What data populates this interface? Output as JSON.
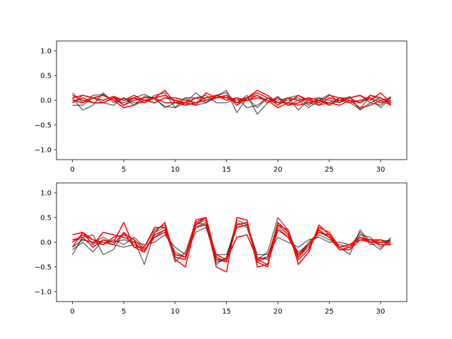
{
  "chart_data": [
    {
      "type": "line",
      "title": "",
      "xlabel": "",
      "ylabel": "",
      "xlim": [
        -1.55,
        32.55
      ],
      "ylim": [
        -1.2,
        1.2
      ],
      "xticks": [
        0,
        5,
        10,
        15,
        20,
        25,
        30
      ],
      "yticks": [
        -1.0,
        -0.5,
        0.0,
        0.5,
        1.0
      ],
      "ytick_labels": [
        "−1.0",
        "−0.5",
        "0.0",
        "0.5",
        "1.0"
      ],
      "grid": false,
      "legend": "none",
      "x": [
        0,
        1,
        2,
        3,
        4,
        5,
        6,
        7,
        8,
        9,
        10,
        11,
        12,
        13,
        14,
        15,
        16,
        17,
        18,
        19,
        20,
        21,
        22,
        23,
        24,
        25,
        26,
        27,
        28,
        29,
        30,
        31
      ],
      "series": [
        {
          "color": "#000000",
          "alpha": 0.55,
          "values": [
            0.15,
            -0.05,
            0.1,
            0.12,
            0.0,
            -0.05,
            0.05,
            0.12,
            0.02,
            -0.12,
            -0.15,
            -0.05,
            0.15,
            0.0,
            0.08,
            0.2,
            -0.25,
            0.05,
            -0.15,
            0.05,
            0.0,
            0.05,
            -0.2,
            0.02,
            0.05,
            -0.1,
            0.0,
            -0.05,
            -0.18,
            0.1,
            0.0,
            0.05
          ]
        },
        {
          "color": "#000000",
          "alpha": 0.55,
          "values": [
            0.05,
            -0.2,
            -0.1,
            0.15,
            -0.05,
            0.05,
            -0.1,
            0.08,
            0.05,
            -0.15,
            -0.05,
            0.05,
            -0.1,
            -0.05,
            0.1,
            0.15,
            -0.05,
            0.1,
            -0.28,
            -0.05,
            0.08,
            -0.1,
            0.0,
            -0.15,
            0.0,
            0.12,
            -0.05,
            0.08,
            -0.2,
            -0.05,
            -0.1,
            0.08
          ]
        },
        {
          "color": "#000000",
          "alpha": 0.55,
          "values": [
            -0.1,
            -0.1,
            0.05,
            -0.05,
            -0.1,
            0.05,
            -0.05,
            -0.05,
            0.1,
            0.15,
            -0.15,
            0.05,
            0.05,
            0.1,
            -0.05,
            -0.05,
            0.05,
            -0.15,
            -0.1,
            0.05,
            -0.05,
            0.05,
            0.1,
            -0.05,
            -0.1,
            -0.05,
            0.05,
            0.05,
            -0.05,
            0.05,
            -0.15,
            0.05
          ]
        },
        {
          "color": "#000000",
          "alpha": 0.55,
          "values": [
            -0.05,
            0.1,
            0.05,
            0.0,
            0.08,
            -0.1,
            0.05,
            0.0,
            -0.05,
            0.05,
            0.0,
            -0.1,
            0.05,
            -0.05,
            0.05,
            0.05,
            0.0,
            0.05,
            0.1,
            0.0,
            -0.05,
            0.0,
            0.05,
            -0.1,
            0.05,
            0.0,
            -0.05,
            0.05,
            0.1,
            -0.05,
            0.05,
            -0.05
          ]
        },
        {
          "color": "#ff0000",
          "alpha": 1.0,
          "values": [
            0.05,
            0.1,
            0.05,
            0.0,
            0.08,
            0.0,
            0.05,
            -0.05,
            0.05,
            0.2,
            -0.05,
            -0.05,
            -0.1,
            0.15,
            0.05,
            0.1,
            -0.1,
            0.05,
            0.2,
            0.1,
            -0.05,
            -0.05,
            0.1,
            0.0,
            -0.05,
            0.1,
            0.05,
            0.0,
            -0.05,
            0.1,
            0.05,
            -0.08
          ]
        },
        {
          "color": "#ff0000",
          "alpha": 1.0,
          "values": [
            -0.05,
            0.05,
            -0.05,
            -0.05,
            0.05,
            -0.1,
            0.0,
            0.05,
            0.05,
            0.1,
            0.0,
            -0.05,
            0.05,
            0.05,
            0.1,
            0.05,
            -0.05,
            0.0,
            0.1,
            -0.05,
            0.05,
            -0.1,
            -0.05,
            0.05,
            -0.1,
            0.05,
            0.0,
            0.05,
            0.1,
            0.0,
            0.15,
            -0.05
          ]
        },
        {
          "color": "#ff0000",
          "alpha": 1.0,
          "values": [
            0.0,
            -0.05,
            0.05,
            0.1,
            0.0,
            -0.15,
            -0.1,
            0.0,
            -0.05,
            0.05,
            0.05,
            0.0,
            -0.05,
            0.05,
            0.1,
            0.0,
            0.05,
            0.0,
            0.05,
            0.0,
            -0.15,
            -0.05,
            -0.1,
            -0.05,
            0.0,
            -0.05,
            -0.1,
            0.0,
            -0.15,
            -0.1,
            0.0,
            -0.1
          ]
        },
        {
          "color": "#ff0000",
          "alpha": 1.0,
          "values": [
            0.1,
            0.0,
            -0.05,
            -0.05,
            0.05,
            0.0,
            0.1,
            0.0,
            0.05,
            -0.05,
            -0.05,
            -0.1,
            -0.05,
            0.0,
            0.05,
            0.1,
            -0.05,
            0.05,
            0.15,
            0.05,
            -0.1,
            0.05,
            0.0,
            0.05,
            0.0,
            -0.1,
            0.05,
            -0.05,
            0.0,
            0.05,
            -0.05,
            0.0
          ]
        }
      ]
    },
    {
      "type": "line",
      "title": "",
      "xlabel": "",
      "ylabel": "",
      "xlim": [
        -1.55,
        32.55
      ],
      "ylim": [
        -1.2,
        1.2
      ],
      "xticks": [
        0,
        5,
        10,
        15,
        20,
        25,
        30
      ],
      "yticks": [
        -1.0,
        -0.5,
        0.0,
        0.5,
        1.0
      ],
      "ytick_labels": [
        "−1.0",
        "−0.5",
        "0.0",
        "0.5",
        "1.0"
      ],
      "grid": false,
      "legend": "none",
      "x": [
        0,
        1,
        2,
        3,
        4,
        5,
        6,
        7,
        8,
        9,
        10,
        11,
        12,
        13,
        14,
        15,
        16,
        17,
        18,
        19,
        20,
        21,
        22,
        23,
        24,
        25,
        26,
        27,
        28,
        29,
        30,
        31
      ],
      "series": [
        {
          "color": "#000000",
          "alpha": 0.55,
          "values": [
            -0.25,
            0.1,
            0.15,
            -0.25,
            -0.15,
            0.2,
            0.05,
            -0.45,
            0.2,
            0.3,
            -0.4,
            -0.2,
            0.4,
            0.35,
            -0.45,
            -0.3,
            0.4,
            0.3,
            -0.35,
            -0.2,
            0.5,
            0.25,
            -0.3,
            -0.1,
            0.25,
            0.1,
            -0.1,
            -0.25,
            0.25,
            0.0,
            -0.15,
            0.1
          ]
        },
        {
          "color": "#000000",
          "alpha": 0.55,
          "values": [
            -0.15,
            0.0,
            -0.2,
            0.05,
            -0.05,
            -0.1,
            -0.05,
            -0.15,
            0.1,
            0.25,
            -0.2,
            -0.3,
            0.3,
            0.4,
            -0.35,
            -0.4,
            0.35,
            0.4,
            -0.4,
            -0.3,
            0.3,
            0.1,
            -0.2,
            -0.05,
            0.15,
            0.05,
            -0.05,
            -0.1,
            0.2,
            -0.05,
            0.0,
            0.05
          ]
        },
        {
          "color": "#000000",
          "alpha": 0.55,
          "values": [
            0.05,
            0.05,
            0.0,
            0.1,
            0.0,
            0.05,
            0.0,
            -0.05,
            0.0,
            0.15,
            -0.1,
            -0.25,
            0.2,
            0.3,
            -0.25,
            -0.25,
            0.3,
            0.35,
            -0.25,
            -0.25,
            0.1,
            0.0,
            -0.1,
            0.05,
            0.1,
            0.0,
            0.0,
            -0.05,
            0.1,
            0.0,
            0.05,
            0.0
          ]
        },
        {
          "color": "#000000",
          "alpha": 0.55,
          "values": [
            -0.1,
            0.05,
            0.0,
            -0.05,
            0.05,
            -0.05,
            0.1,
            -0.1,
            0.25,
            0.35,
            -0.3,
            -0.35,
            0.35,
            0.45,
            -0.4,
            -0.35,
            0.45,
            0.35,
            -0.3,
            -0.35,
            0.4,
            0.2,
            -0.25,
            0.0,
            0.2,
            0.1,
            -0.15,
            -0.15,
            0.15,
            0.1,
            -0.1,
            0.05
          ]
        },
        {
          "color": "#ff0000",
          "alpha": 1.0,
          "values": [
            0.15,
            0.2,
            -0.05,
            0.2,
            0.15,
            0.1,
            0.0,
            -0.2,
            0.2,
            0.4,
            -0.35,
            -0.5,
            0.35,
            0.5,
            -0.5,
            -0.6,
            0.5,
            0.45,
            -0.5,
            -0.45,
            0.35,
            0.25,
            -0.45,
            -0.2,
            0.35,
            0.15,
            -0.15,
            -0.1,
            0.1,
            0.05,
            0.05,
            -0.05
          ]
        },
        {
          "color": "#ff0000",
          "alpha": 1.0,
          "values": [
            0.05,
            0.1,
            -0.1,
            0.05,
            0.0,
            0.4,
            -0.1,
            -0.1,
            0.3,
            0.3,
            -0.3,
            -0.35,
            0.4,
            0.5,
            -0.3,
            -0.4,
            0.35,
            0.4,
            -0.4,
            -0.5,
            0.4,
            0.2,
            -0.35,
            -0.15,
            0.3,
            0.2,
            -0.1,
            -0.05,
            0.05,
            0.0,
            0.05,
            -0.05
          ]
        },
        {
          "color": "#ff0000",
          "alpha": 1.0,
          "values": [
            0.0,
            0.15,
            0.05,
            -0.05,
            0.1,
            0.15,
            0.05,
            -0.15,
            0.1,
            0.2,
            -0.25,
            -0.3,
            0.3,
            0.35,
            -0.25,
            -0.35,
            0.3,
            0.35,
            -0.35,
            -0.3,
            0.35,
            0.15,
            -0.25,
            -0.05,
            0.2,
            0.15,
            -0.1,
            -0.05,
            0.1,
            0.0,
            0.0,
            0.0
          ]
        },
        {
          "color": "#ff0000",
          "alpha": 1.0,
          "values": [
            -0.1,
            0.2,
            0.05,
            0.0,
            -0.05,
            0.2,
            -0.1,
            -0.2,
            0.15,
            0.25,
            -0.25,
            -0.3,
            0.45,
            0.5,
            -0.35,
            -0.35,
            0.1,
            0.15,
            -0.35,
            -0.45,
            0.25,
            0.1,
            -0.3,
            -0.05,
            0.25,
            0.1,
            -0.15,
            -0.15,
            0.05,
            0.05,
            -0.05,
            -0.05
          ]
        }
      ]
    }
  ]
}
